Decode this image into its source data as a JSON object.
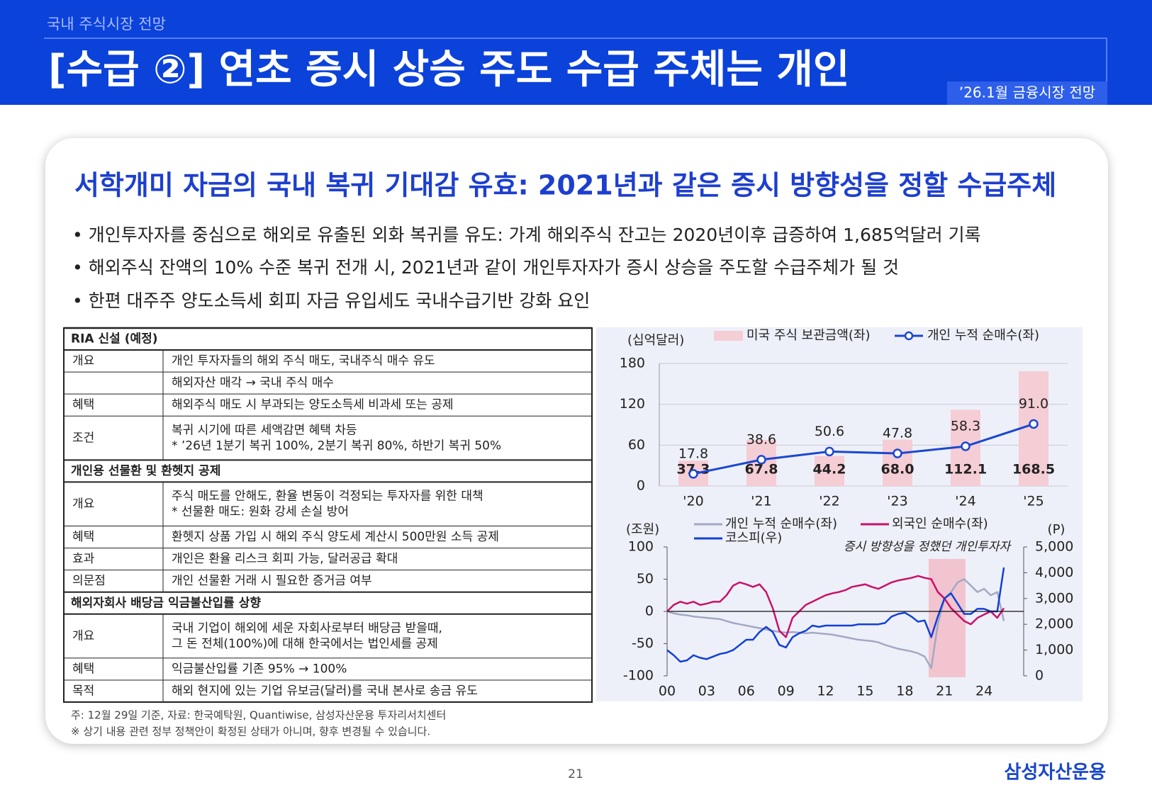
{
  "header": {
    "section": "국내 주식시장 전망",
    "title": "[수급 ②] 연초 증시 상승 주도 수급 주체는 개인",
    "badge": "’26.1월 금융시장 전망"
  },
  "headline": "서학개미 자금의 국내 복귀 기대감 유효: 2021년과 같은 증시 방향성을 정할 수급주체",
  "bullets": [
    "• 개인투자자를 중심으로 해외로 유출된 외화 복귀를 유도: 가계 해외주식 잔고는 2020년이후 급증하여 1,685억달러 기록",
    "• 해외주식 잔액의 10% 수준 복귀 전개 시, 2021년과 같이 개인투자자가 증시 상승을 주도할 수급주체가 될 것",
    "• 한편 대주주 양도소득세 회피 자금 유입세도 국내수급기반 강화 요인"
  ],
  "table": {
    "sections": [
      {
        "title": "RIA 신설 (예정)",
        "rows": [
          {
            "label": "개요",
            "lines": [
              "개인 투자자들의 해외 주식 매도, 국내주식 매수 유도"
            ]
          },
          {
            "label": null,
            "lines": [
              "해외자산 매각 → 국내 주식 매수"
            ]
          },
          {
            "label": "혜택",
            "lines": [
              "해외주식 매도 시 부과되는 양도소득세 비과세 또는 공제"
            ]
          },
          {
            "label": "조건",
            "lines": [
              "복귀 시기에 따른 세액감면 혜택 차등",
              "* ’26년 1분기 복귀 100%, 2분기 복귀 80%, 하반기 복귀 50%"
            ]
          }
        ]
      },
      {
        "title": "개인용 선물환 및 환헷지 공제",
        "rows": [
          {
            "label": "개요",
            "lines": [
              "주식 매도를 안해도, 환율 변동이 걱정되는 투자자를 위한 대책",
              "* 선물환 매도: 원화 강세 손실 방어"
            ]
          },
          {
            "label": "혜택",
            "lines": [
              "환헷지 상품 가입 시 해외 주식 양도세 계산시 500만원 소득 공제"
            ]
          },
          {
            "label": "효과",
            "lines": [
              "개인은 환율 리스크 회피 가능, 달러공급 확대"
            ]
          },
          {
            "label": "의문점",
            "lines": [
              "개인 선물환 거래 시 필요한 증거금 여부"
            ]
          }
        ]
      },
      {
        "title": "해외자회사 배당금 익금불산입률 상향",
        "rows": [
          {
            "label": "개요",
            "lines": [
              "국내 기업이 해외에 세운 자회사로부터 배당금 받을때,",
              "그 돈 전체(100%)에 대해 한국에서는 법인세를 공제"
            ]
          },
          {
            "label": "혜택",
            "lines": [
              "익금불산입률 기존 95% → 100%"
            ]
          },
          {
            "label": "목적",
            "lines": [
              "해외 현지에 있는 기업 유보금(달러)를 국내 본사로 송금 유도"
            ]
          }
        ]
      }
    ]
  },
  "chart_data": [
    {
      "type": "bar",
      "y_unit": "(십억달러)",
      "categories": [
        "'20",
        "'21",
        "'22",
        "'23",
        "'24",
        "'25"
      ],
      "series": [
        {
          "name": "미국 주식 보관금액(좌)",
          "type": "bar",
          "color": "#f5cdd5",
          "values": [
            37.3,
            67.8,
            44.2,
            68,
            112.1,
            168.5
          ],
          "value_labels": [
            "37.3",
            "67.8",
            "44.2",
            "68.0",
            "112.1",
            "168.5"
          ]
        },
        {
          "name": "개인 누적 순매수(좌)",
          "type": "line",
          "color": "#1a47d1",
          "values": [
            17.8,
            38.6,
            50.6,
            47.8,
            58.3,
            91
          ],
          "value_labels": [
            "17.8",
            "38.6",
            "50.6",
            "47.8",
            "58.3",
            "91.0"
          ]
        }
      ],
      "ylim": [
        0,
        180
      ],
      "yticks": [
        0,
        60,
        120,
        180
      ],
      "grid": true
    },
    {
      "type": "line",
      "y_unit": "(조원)",
      "y2_unit": "(P)",
      "annotation": "증시 방향성을 정했던 개인투자자",
      "highlight_x": [
        2019.8,
        2022.6
      ],
      "x": [
        2000,
        2000.5,
        2001,
        2001.5,
        2002,
        2002.5,
        2003,
        2003.5,
        2004,
        2004.5,
        2005,
        2005.5,
        2006,
        2006.5,
        2007,
        2007.5,
        2008,
        2008.5,
        2009,
        2009.5,
        2010,
        2010.5,
        2011,
        2011.5,
        2012,
        2012.5,
        2013,
        2013.5,
        2014,
        2014.5,
        2015,
        2015.5,
        2016,
        2016.5,
        2017,
        2017.5,
        2018,
        2018.5,
        2019,
        2019.5,
        2020,
        2020.5,
        2021,
        2021.5,
        2022,
        2022.5,
        2023,
        2023.5,
        2024,
        2024.5,
        2025,
        2025.5
      ],
      "series": [
        {
          "name": "개인 누적 순매수(좌)",
          "color": "#a3a8c4",
          "values": [
            0,
            -3,
            -5,
            -6,
            -8,
            -9,
            -10,
            -11,
            -12,
            -15,
            -18,
            -20,
            -22,
            -24,
            -26,
            -28,
            -30,
            -32,
            -33,
            -32,
            -33,
            -34,
            -33,
            -34,
            -35,
            -36,
            -38,
            -40,
            -42,
            -44,
            -45,
            -46,
            -48,
            -52,
            -55,
            -58,
            -60,
            -62,
            -65,
            -70,
            -88,
            -20,
            20,
            30,
            45,
            50,
            40,
            30,
            35,
            25,
            30,
            -15
          ]
        },
        {
          "name": "외국인 순매수(좌)",
          "color": "#c8116a",
          "values": [
            0,
            10,
            15,
            12,
            15,
            10,
            12,
            15,
            15,
            25,
            40,
            45,
            42,
            38,
            42,
            30,
            5,
            -30,
            -40,
            -10,
            0,
            10,
            15,
            20,
            25,
            28,
            30,
            33,
            38,
            40,
            42,
            38,
            35,
            40,
            45,
            48,
            50,
            52,
            55,
            52,
            50,
            30,
            20,
            5,
            -5,
            -15,
            -20,
            -10,
            -5,
            0,
            -10,
            5
          ]
        },
        {
          "name": "코스피(우)",
          "color": "#1240d6",
          "axis": "y2",
          "values": [
            1000,
            800,
            550,
            600,
            800,
            700,
            650,
            750,
            850,
            900,
            1000,
            1200,
            1400,
            1400,
            1700,
            1900,
            1700,
            1200,
            1100,
            1500,
            1650,
            1750,
            1950,
            1900,
            1950,
            1950,
            1950,
            1950,
            1950,
            2000,
            2000,
            2000,
            2000,
            2050,
            2300,
            2400,
            2450,
            2300,
            2100,
            2150,
            1500,
            2300,
            3000,
            3200,
            2800,
            2400,
            2400,
            2600,
            2600,
            2500,
            2500,
            4200
          ]
        }
      ],
      "xlim": [
        2000,
        2027
      ],
      "xticks": [
        {
          "value": 2000,
          "label": "00"
        },
        {
          "value": 2003,
          "label": "03"
        },
        {
          "value": 2006,
          "label": "06"
        },
        {
          "value": 2009,
          "label": "09"
        },
        {
          "value": 2012,
          "label": "12"
        },
        {
          "value": 2015,
          "label": "15"
        },
        {
          "value": 2018,
          "label": "18"
        },
        {
          "value": 2021,
          "label": "21"
        },
        {
          "value": 2024,
          "label": "24"
        }
      ],
      "ylim": [
        -100,
        100
      ],
      "yticks": [
        -100,
        -50,
        0,
        50,
        100
      ],
      "y2lim": [
        0,
        5000
      ],
      "y2ticks": [
        0,
        {
          "value": 1000,
          "label": "1,000"
        },
        {
          "value": 2000,
          "label": "2,000"
        },
        {
          "value": 3000,
          "label": "3,000"
        },
        {
          "value": 4000,
          "label": "4,000"
        },
        {
          "value": 5000,
          "label": "5,000"
        }
      ]
    }
  ],
  "footnotes": [
    "주: 12월 29일 기준,  자료: 한국예탁원, Quantiwise, 삼성자산운용 투자리서치센터",
    "※ 상기 내용 관련 정부 정책안이 확정된 상태가 아니며, 향후 변경될 수 있습니다."
  ],
  "page_number": "21",
  "logo": "삼성자산운용"
}
